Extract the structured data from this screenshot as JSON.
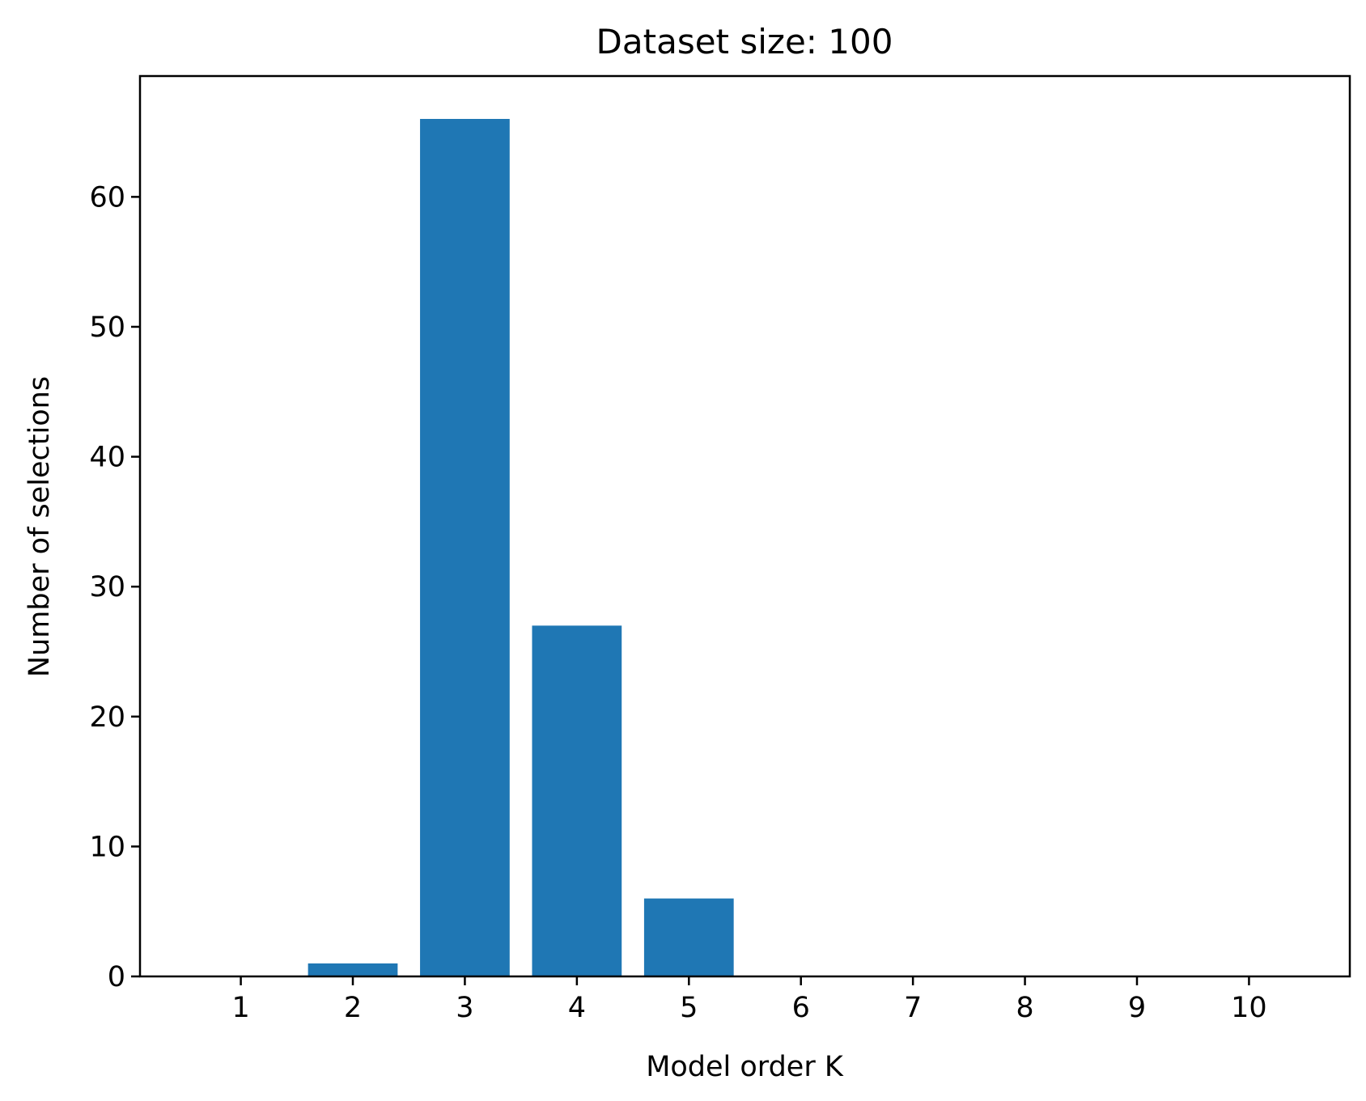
{
  "chart_data": {
    "type": "bar",
    "title": "Dataset size: 100",
    "xlabel": "Model order K",
    "ylabel": "Number of selections",
    "categories": [
      "1",
      "2",
      "3",
      "4",
      "5",
      "6",
      "7",
      "8",
      "9",
      "10"
    ],
    "values": [
      0,
      1,
      66,
      27,
      6,
      0,
      0,
      0,
      0,
      0
    ],
    "xlim": [
      0.1,
      10.9
    ],
    "ylim": [
      0,
      69.3
    ],
    "yticks": [
      0,
      10,
      20,
      30,
      40,
      50,
      60
    ],
    "bar_width": 0.8,
    "grid": false,
    "legend": "none",
    "colors": {
      "bar": "#1f77b4",
      "axes": "#000000",
      "background": "#ffffff"
    }
  }
}
